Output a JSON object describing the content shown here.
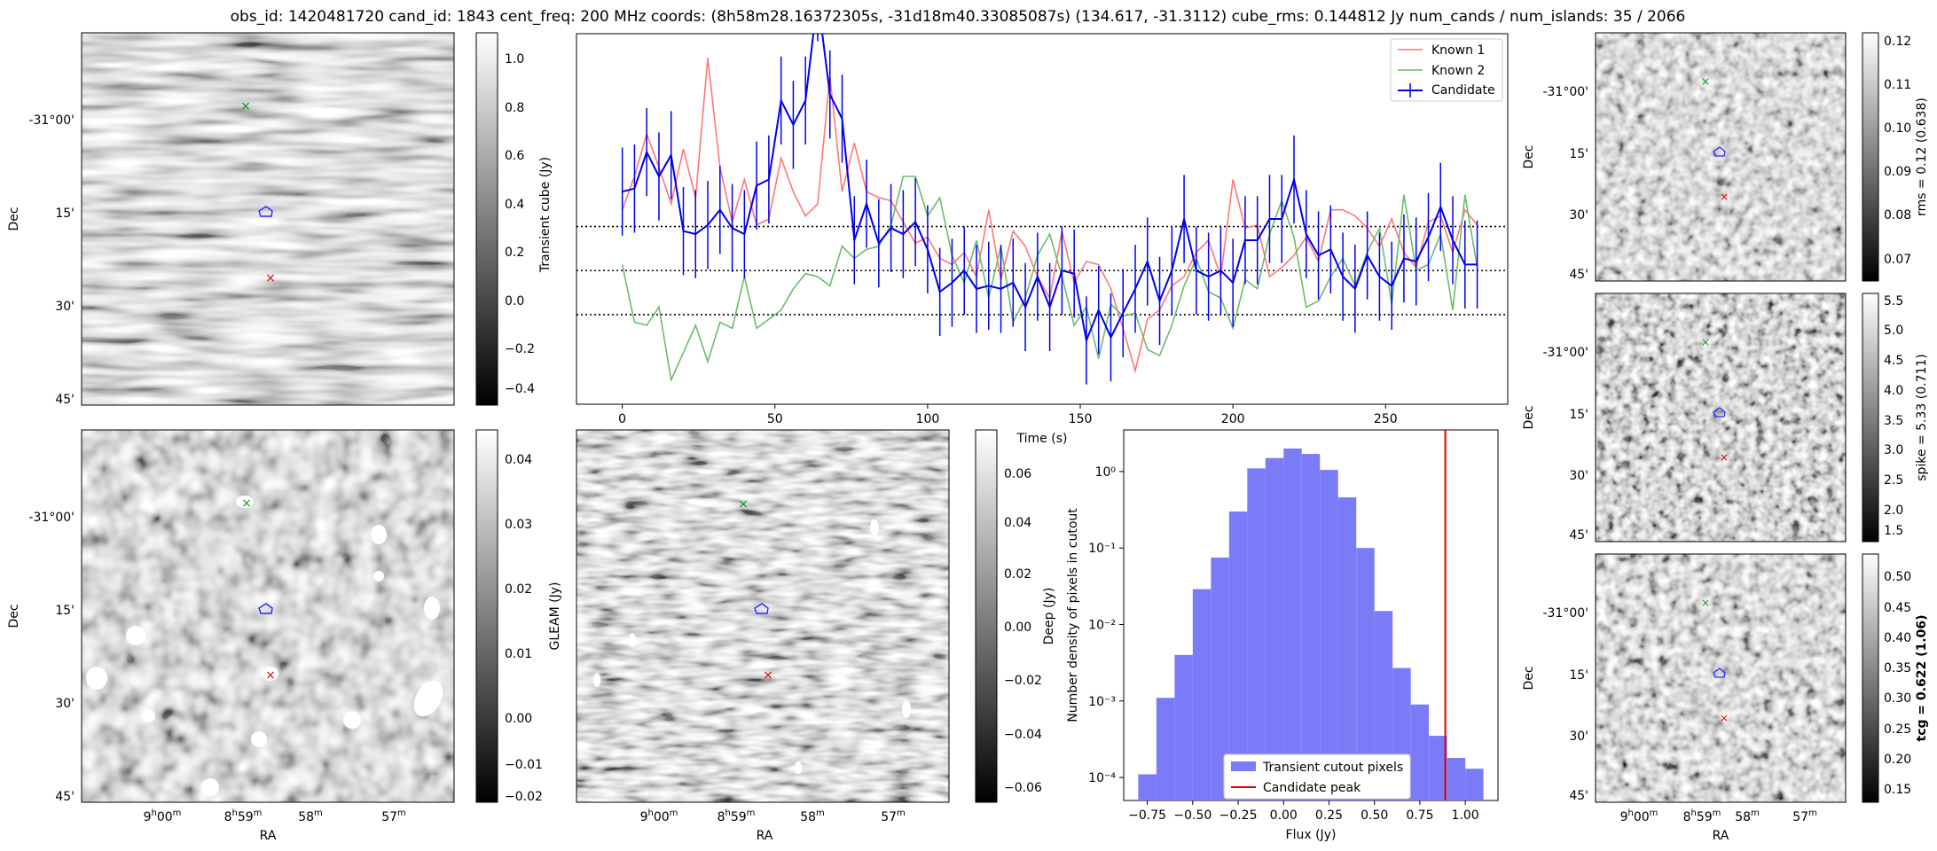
{
  "title": "obs_id: 1420481720 cand_id: 1843 cent_freq: 200 MHz coords: (8h58m28.16372305s, -31d18m40.33085087s) (134.617, -31.3112) cube_rms: 0.144812 Jy num_cands / num_islands: 35 / 2066",
  "axes": {
    "dec_label": "Dec",
    "ra_label": "RA",
    "dec_ticks": [
      "-31°00'",
      "15'",
      "30'",
      "45'"
    ],
    "ra_ticks": [
      {
        "base": "9",
        "sup1": "h",
        "mid": "00",
        "sup2": "m"
      },
      {
        "base": "8",
        "sup1": "h",
        "mid": "59",
        "sup2": "m"
      },
      {
        "base": "58",
        "sup1": "",
        "mid": "",
        "sup2": "m"
      },
      {
        "base": "57",
        "sup1": "",
        "mid": "",
        "sup2": "m"
      }
    ]
  },
  "colorbars": {
    "transient": {
      "label": "Transient cube (Jy)",
      "ticks": [
        "1.0",
        "0.8",
        "0.6",
        "0.4",
        "0.2",
        "0.0",
        "−0.2",
        "−0.4"
      ]
    },
    "gleam": {
      "label": "GLEAM (Jy)",
      "ticks": [
        "0.04",
        "0.03",
        "0.02",
        "0.01",
        "0.00",
        "−0.01",
        "−0.02"
      ]
    },
    "deep": {
      "label": "Deep (Jy)",
      "ticks": [
        "0.06",
        "0.04",
        "0.02",
        "0.00",
        "−0.02",
        "−0.04",
        "−0.06"
      ]
    },
    "rms": {
      "label": "rms = 0.12 (0.638)",
      "ticks": [
        "0.12",
        "0.11",
        "0.10",
        "0.09",
        "0.08",
        "0.07"
      ]
    },
    "spike": {
      "label": "spike = 5.33 (0.711)",
      "ticks": [
        "5.5",
        "5.0",
        "4.5",
        "4.0",
        "3.5",
        "3.0",
        "2.5",
        "2.0",
        "1.5"
      ]
    },
    "tcg": {
      "label": "tcg = 0.622 (1.06)",
      "ticks": [
        "0.50",
        "0.45",
        "0.40",
        "0.35",
        "0.30",
        "0.25",
        "0.20",
        "0.15"
      ]
    }
  },
  "colors": {
    "known1": "#ff7777",
    "known2": "#6dbb6d",
    "candidate": "#0000ee",
    "hist_fill": "#7b7bf7",
    "peak_line": "#dd0000"
  },
  "chart_data": [
    {
      "type": "line",
      "title": "",
      "xlabel": "Time (s)",
      "ylabel": "",
      "xlim": [
        -15,
        290
      ],
      "ylim": [
        -0.44,
        0.78
      ],
      "x_ticks": [
        0,
        50,
        100,
        150,
        200,
        250
      ],
      "hlines": [
        0.145,
        0.0,
        -0.145
      ],
      "legend": "top-right",
      "time_step": 4,
      "series": [
        {
          "name": "Known 1",
          "values": [
            0.2,
            0.31,
            0.45,
            0.34,
            0.22,
            0.4,
            0.24,
            0.7,
            0.34,
            0.16,
            0.3,
            0.15,
            0.17,
            0.37,
            0.26,
            0.18,
            0.22,
            0.64,
            0.26,
            0.42,
            0.26,
            0.24,
            0.23,
            0.16,
            0.09,
            0.11,
            0.04,
            0.02,
            0.06,
            -0.02,
            0.2,
            -0.03,
            0.13,
            0.08,
            -0.02,
            -0.09,
            0.13,
            -0.04,
            0.03,
            0.02,
            -0.06,
            -0.19,
            -0.33,
            -0.16,
            -0.13,
            -0.05,
            -0.02,
            0.06,
            0.1,
            -0.02,
            0.3,
            0.14,
            0.15,
            -0.02,
            0.01,
            0.05,
            0.11,
            0.03,
            0.2,
            0.2,
            0.18,
            0.14,
            0.08,
            0.17,
            0.06,
            0.01,
            0.16,
            0.18,
            0.06,
            0.2,
            0.15
          ]
        },
        {
          "name": "Known 2",
          "values": [
            0.02,
            -0.17,
            -0.18,
            -0.12,
            -0.36,
            -0.27,
            -0.18,
            -0.3,
            -0.17,
            -0.19,
            -0.02,
            -0.19,
            -0.16,
            -0.13,
            -0.06,
            -0.01,
            -0.02,
            -0.05,
            0.08,
            0.04,
            0.07,
            0.08,
            0.15,
            0.31,
            0.31,
            0.18,
            0.24,
            0.05,
            -0.04,
            0.1,
            -0.09,
            0.08,
            -0.17,
            -0.09,
            0.05,
            0.12,
            -0.02,
            -0.18,
            -0.12,
            -0.29,
            -0.11,
            -0.15,
            -0.14,
            -0.26,
            -0.28,
            -0.18,
            -0.05,
            0.04,
            -0.07,
            -0.09,
            -0.19,
            -0.03,
            -0.06,
            0.12,
            0.23,
            0.11,
            -0.12,
            -0.1,
            -0.02,
            0.04,
            -0.05,
            0.06,
            0.14,
            -0.11,
            0.25,
            0.0,
            0.02,
            0.12,
            -0.13,
            0.25,
            0.01
          ]
        },
        {
          "name": "Candidate",
          "values": [
            0.26,
            0.27,
            0.39,
            0.31,
            0.38,
            0.13,
            0.12,
            0.15,
            0.2,
            0.14,
            0.12,
            0.28,
            0.3,
            0.56,
            0.48,
            0.56,
            0.9,
            0.58,
            0.5,
            0.1,
            0.22,
            0.09,
            0.14,
            0.12,
            0.16,
            0.07,
            -0.07,
            -0.04,
            0.0,
            -0.06,
            -0.05,
            -0.06,
            -0.04,
            -0.12,
            -0.02,
            -0.12,
            0.0,
            -0.01,
            -0.23,
            -0.13,
            -0.22,
            -0.14,
            -0.06,
            0.03,
            -0.1,
            0.0,
            0.17,
            0.0,
            -0.02,
            0.0,
            -0.04,
            0.1,
            0.1,
            0.17,
            0.17,
            0.3,
            0.12,
            0.05,
            0.07,
            -0.02,
            -0.06,
            0.05,
            -0.02,
            -0.05,
            0.04,
            0.03,
            0.11,
            0.21,
            0.1,
            0.02,
            0.02
          ],
          "error": 0.145
        }
      ]
    },
    {
      "type": "bar",
      "title": "",
      "xlabel": "Flux (Jy)",
      "ylabel": "Number density of pixels in cutout",
      "yscale": "log",
      "xlim": [
        -0.88,
        1.18
      ],
      "ylim": [
        5e-05,
        3.5
      ],
      "x_ticks": [
        "−0.75",
        "−0.50",
        "−0.25",
        "0.00",
        "0.25",
        "0.50",
        "0.75",
        "1.00"
      ],
      "y_ticks": [
        "10⁰",
        "10⁻¹",
        "10⁻²",
        "10⁻³",
        "10⁻⁴"
      ],
      "bin_edges": [
        -0.8,
        -0.7,
        -0.6,
        -0.5,
        -0.4,
        -0.3,
        -0.2,
        -0.1,
        0.0,
        0.1,
        0.2,
        0.3,
        0.4,
        0.5,
        0.6,
        0.7,
        0.8,
        0.9,
        1.0,
        1.1
      ],
      "values": [
        0.00011,
        0.0011,
        0.004,
        0.029,
        0.075,
        0.3,
        1.1,
        1.5,
        2.0,
        1.7,
        1.05,
        0.46,
        0.1,
        0.015,
        0.0027,
        0.0009,
        0.00035,
        0.00018,
        0.00013
      ],
      "peak_x": 0.89,
      "legend": "bottom-center",
      "legend_entries": [
        "Transient cutout pixels",
        "Candidate peak"
      ]
    }
  ]
}
